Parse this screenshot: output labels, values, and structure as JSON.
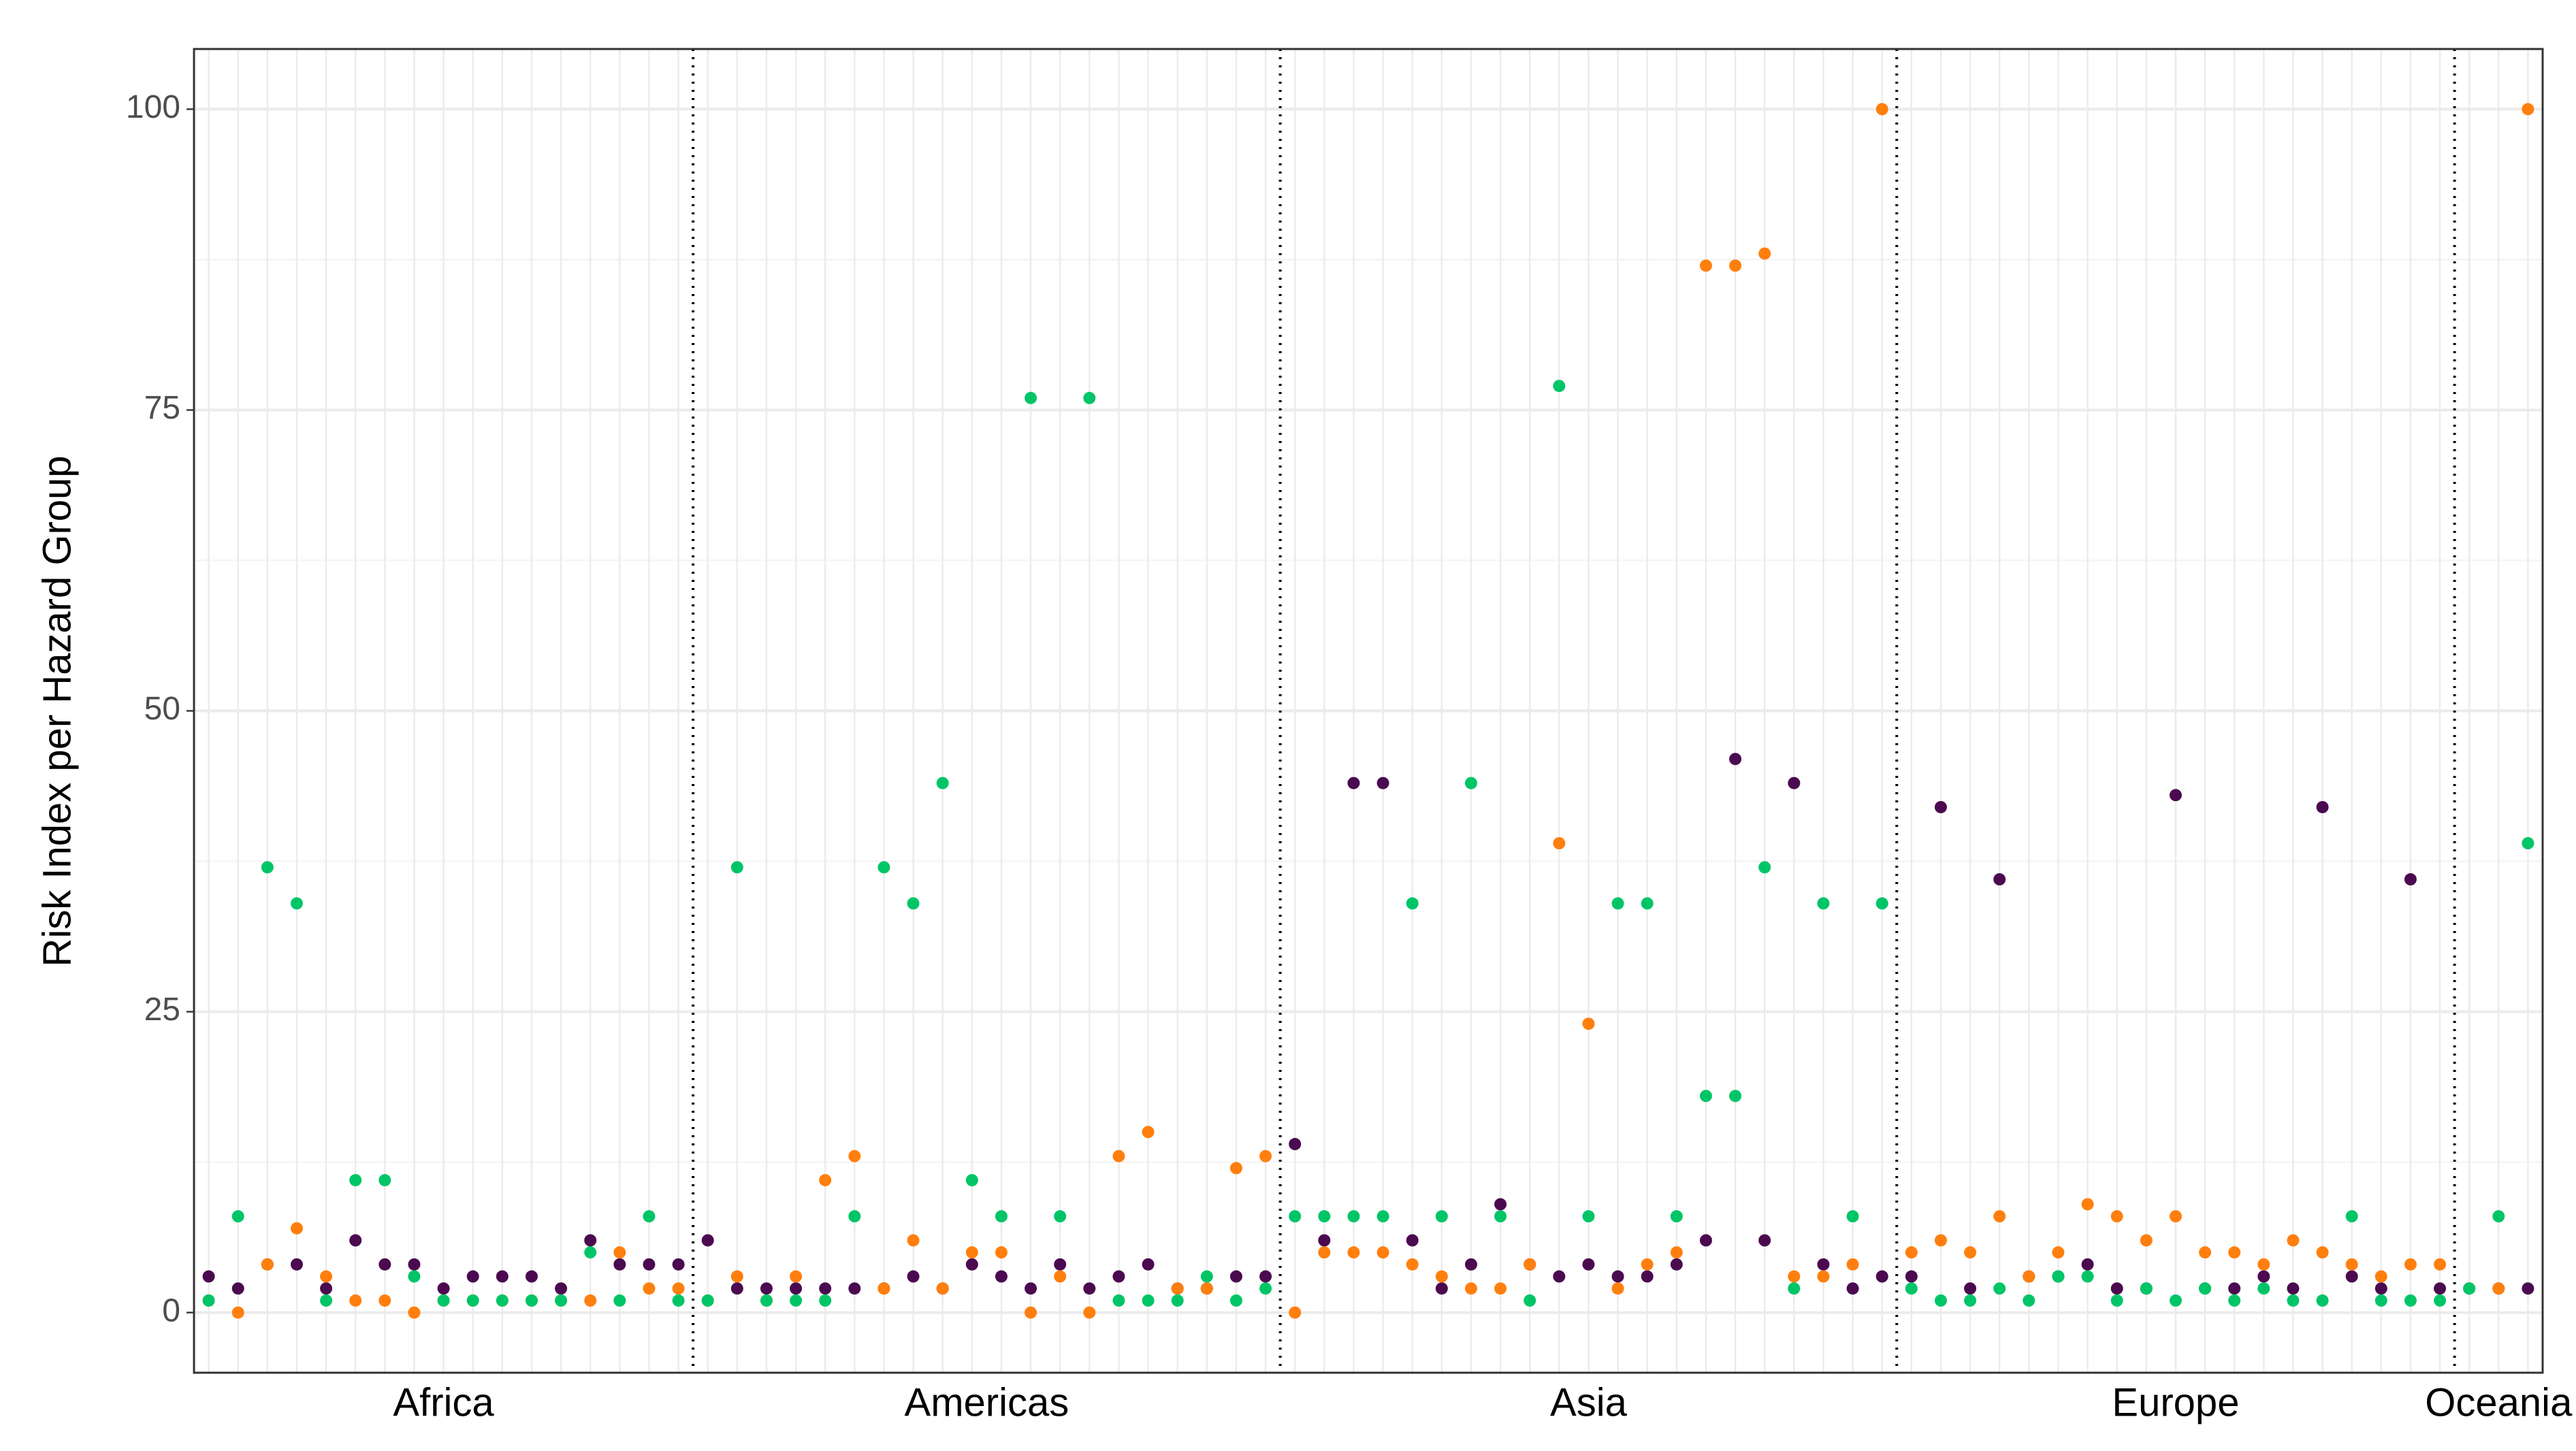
{
  "chart_data": {
    "type": "scatter",
    "ylabel": "Risk Index per Hazard Group",
    "categories": [
      null,
      null,
      null,
      null,
      null,
      null,
      null,
      null,
      null,
      null,
      null,
      null,
      null,
      null,
      null,
      null,
      null,
      null,
      null,
      null,
      null,
      null,
      null,
      null,
      null,
      null,
      null,
      null,
      null,
      null,
      null,
      null,
      null,
      null,
      null,
      null,
      null,
      null,
      null,
      null,
      null,
      null,
      null,
      null,
      null,
      null,
      null,
      null,
      null,
      null,
      null,
      null,
      null,
      null,
      null,
      null,
      null,
      null,
      null,
      null,
      null,
      null,
      null,
      null,
      null,
      null,
      null,
      null,
      null,
      null,
      null,
      null,
      null,
      null,
      null,
      null,
      null,
      null,
      null,
      null
    ],
    "groups": [
      {
        "name": "Africa",
        "count": 17
      },
      {
        "name": "Americas",
        "count": 20
      },
      {
        "name": "Asia",
        "count": 21
      },
      {
        "name": "Europe",
        "count": 19
      },
      {
        "name": "Oceania",
        "count": 3
      }
    ],
    "series": [
      {
        "color": "#4b0a50",
        "values": [
          3,
          2,
          4,
          4,
          2,
          6,
          4,
          4,
          2,
          3,
          3,
          3,
          2,
          6,
          4,
          4,
          4,
          6,
          2,
          2,
          2,
          2,
          2,
          2,
          3,
          2,
          4,
          3,
          2,
          4,
          2,
          3,
          4,
          2,
          2,
          3,
          3,
          14,
          6,
          44,
          44,
          6,
          2,
          4,
          9,
          4,
          3,
          4,
          3,
          3,
          4,
          6,
          46,
          6,
          44,
          4,
          2,
          3,
          3,
          42,
          2,
          36,
          3,
          3,
          4,
          2,
          2,
          43,
          2,
          2,
          3,
          2,
          42,
          3,
          2,
          36,
          2,
          2,
          2,
          2
        ]
      },
      {
        "color": "#ff7f0e",
        "values": [
          1,
          0,
          4,
          7,
          3,
          1,
          1,
          0,
          1,
          1,
          1,
          1,
          1,
          1,
          5,
          2,
          2,
          1,
          3,
          1,
          3,
          11,
          13,
          2,
          6,
          2,
          5,
          5,
          0,
          3,
          0,
          13,
          15,
          2,
          2,
          12,
          13,
          0,
          5,
          5,
          5,
          4,
          3,
          2,
          2,
          4,
          39,
          24,
          2,
          4,
          5,
          87,
          87,
          88,
          3,
          3,
          4,
          100,
          5,
          6,
          5,
          8,
          3,
          5,
          9,
          8,
          6,
          8,
          5,
          5,
          4,
          6,
          5,
          4,
          3,
          4,
          4,
          2,
          2,
          100
        ]
      },
      {
        "color": "#00c567",
        "values": [
          1,
          8,
          37,
          34,
          1,
          11,
          11,
          3,
          1,
          1,
          1,
          1,
          1,
          5,
          1,
          8,
          1,
          1,
          37,
          1,
          1,
          1,
          8,
          37,
          34,
          44,
          11,
          8,
          76,
          8,
          76,
          1,
          1,
          1,
          3,
          1,
          2,
          8,
          8,
          8,
          8,
          34,
          8,
          44,
          8,
          1,
          77,
          8,
          34,
          34,
          8,
          18,
          18,
          37,
          2,
          34,
          8,
          34,
          2,
          1,
          1,
          2,
          1,
          3,
          3,
          1,
          2,
          1,
          2,
          1,
          2,
          1,
          1,
          8,
          1,
          1,
          1,
          2,
          8,
          39
        ]
      }
    ],
    "ylim": [
      -5,
      105
    ],
    "yticks": [
      0,
      25,
      50,
      75,
      100
    ],
    "grid": true
  }
}
